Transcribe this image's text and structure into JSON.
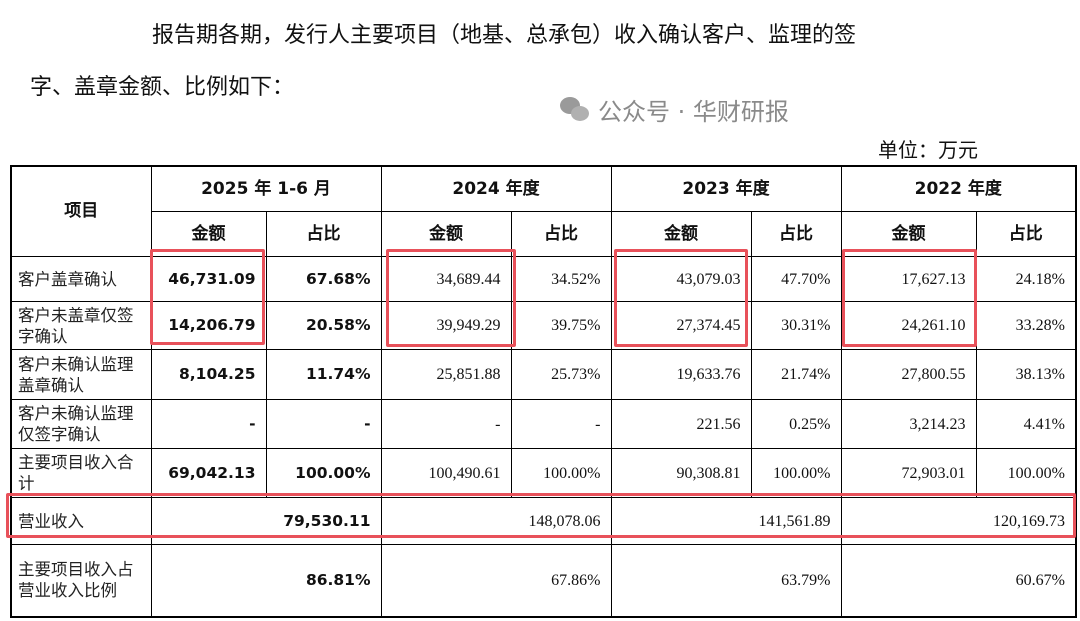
{
  "intro": {
    "line1": "报告期各期，发行人主要项目（地基、总承包）收入确认客户、监理的签",
    "line2": "字、盖章金额、比例如下："
  },
  "unit": "单位：万元",
  "table": {
    "item_header": "项目",
    "periods": [
      "2025 年 1-6 月",
      "2024 年度",
      "2023 年度",
      "2022 年度"
    ],
    "amount_label": "金额",
    "ratio_label": "占比",
    "rows": [
      {
        "label": "客户盖章确认",
        "values": [
          "46,731.09",
          "67.68%",
          "34,689.44",
          "34.52%",
          "43,079.03",
          "47.70%",
          "17,627.13",
          "24.18%"
        ]
      },
      {
        "label": "客户未盖章仅签字确认",
        "values": [
          "14,206.79",
          "20.58%",
          "39,949.29",
          "39.75%",
          "27,374.45",
          "30.31%",
          "24,261.10",
          "33.28%"
        ]
      },
      {
        "label": "客户未确认监理盖章确认",
        "values": [
          "8,104.25",
          "11.74%",
          "25,851.88",
          "25.73%",
          "19,633.76",
          "21.74%",
          "27,800.55",
          "38.13%"
        ]
      },
      {
        "label": "客户未确认监理仅签字确认",
        "values": [
          "-",
          "-",
          "-",
          "-",
          "221.56",
          "0.25%",
          "3,214.23",
          "4.41%"
        ]
      },
      {
        "label": "主要项目收入合计",
        "values": [
          "69,042.13",
          "100.00%",
          "100,490.61",
          "100.00%",
          "90,308.81",
          "100.00%",
          "72,903.01",
          "100.00%"
        ]
      }
    ],
    "revenue_row": {
      "label": "营业收入",
      "values": [
        "79,530.11",
        "148,078.06",
        "141,561.89",
        "120,169.73"
      ]
    },
    "share_row": {
      "label": "主要项目收入占营业收入比例",
      "values": [
        "86.81%",
        "67.86%",
        "63.79%",
        "60.67%"
      ]
    }
  },
  "highlight_color": "#e8515a",
  "watermark": {
    "icon": "wechat-icon",
    "text": "公众号 · 华财研报"
  }
}
